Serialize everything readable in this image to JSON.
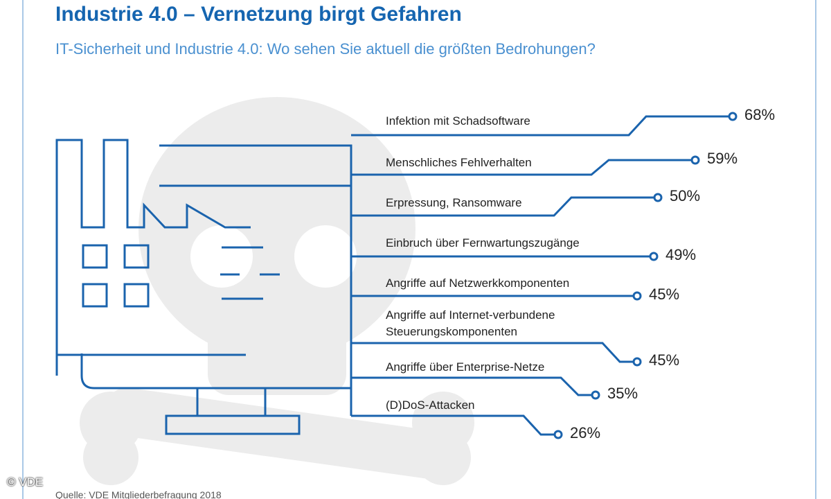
{
  "chart_data": {
    "type": "bar",
    "title": "Industrie 4.0 – Vernetzung birgt Gefahren",
    "subtitle": "IT-Sicherheit und Industrie 4.0: Wo sehen Sie aktuell die größten Bedrohungen?",
    "categories": [
      "Infektion mit Schadsoftware",
      "Menschliches Fehlverhalten",
      "Erpressung, Ransomware",
      "Einbruch über Fernwartungszugänge",
      "Angriffe auf Netzwerkkomponenten",
      "Angriffe auf Internet-verbundene\nSteuerungskomponenten",
      "Angriffe über Enterprise-Netze",
      "(D)DoS-Attacken"
    ],
    "values": [
      68,
      59,
      50,
      49,
      45,
      45,
      35,
      26
    ],
    "value_labels": [
      "68%",
      "59%",
      "50%",
      "49%",
      "45%",
      "45%",
      "35%",
      "26%"
    ],
    "color": "#1a63ad",
    "source": "Quelle: VDE Mitgliederbefragung 2018",
    "copyright": "© VDE"
  }
}
